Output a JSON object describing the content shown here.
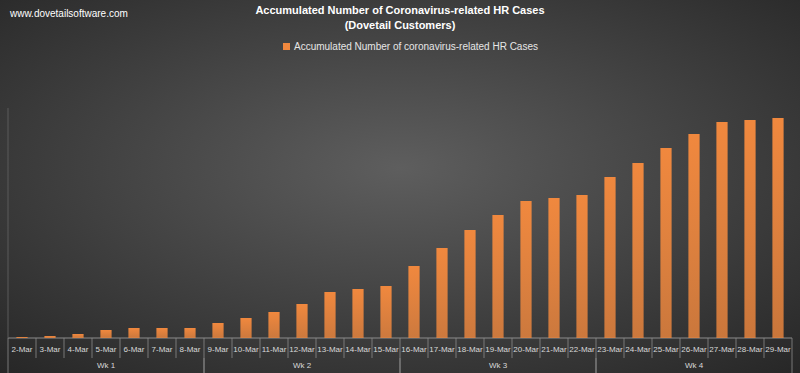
{
  "chart_data": {
    "type": "bar",
    "title": "Accumulated Number of Coronavirus-related HR Cases",
    "subtitle": "(Dovetail Customers)",
    "source": "www.dovetailsoftware.com",
    "categories": [
      "2-Mar",
      "3-Mar",
      "4-Mar",
      "5-Mar",
      "6-Mar",
      "7-Mar",
      "8-Mar",
      "9-Mar",
      "10-Mar",
      "11-Mar",
      "12-Mar",
      "13-Mar",
      "14-Mar",
      "15-Mar",
      "16-Mar",
      "17-Mar",
      "18-Mar",
      "19-Mar",
      "20-Mar",
      "21-Mar",
      "22-Mar",
      "23-Mar",
      "24-Mar",
      "25-Mar",
      "26-Mar",
      "27-Mar",
      "28-Mar",
      "29-Mar"
    ],
    "groups": [
      "Wk 1",
      "Wk 1",
      "Wk 1",
      "Wk 1",
      "Wk 1",
      "Wk 1",
      "Wk 1",
      "Wk 2",
      "Wk 2",
      "Wk 2",
      "Wk 2",
      "Wk 2",
      "Wk 2",
      "Wk 2",
      "Wk 3",
      "Wk 3",
      "Wk 3",
      "Wk 3",
      "Wk 3",
      "Wk 3",
      "Wk 3",
      "Wk 4",
      "Wk 4",
      "Wk 4",
      "Wk 4",
      "Wk 4",
      "Wk 4",
      "Wk 4"
    ],
    "series": [
      {
        "name": "Accumulated Number of coronavirus-related HR Cases",
        "color": "#f0883e",
        "values": [
          1,
          2,
          4,
          8,
          10,
          10,
          10,
          15,
          20,
          26,
          34,
          46,
          49,
          52,
          72,
          90,
          108,
          123,
          137,
          140,
          143,
          161,
          175,
          190,
          204,
          216,
          218,
          220
        ]
      }
    ],
    "ylim": [
      0,
      230
    ],
    "tick_labels": "x",
    "grid": false,
    "legend": "top"
  }
}
